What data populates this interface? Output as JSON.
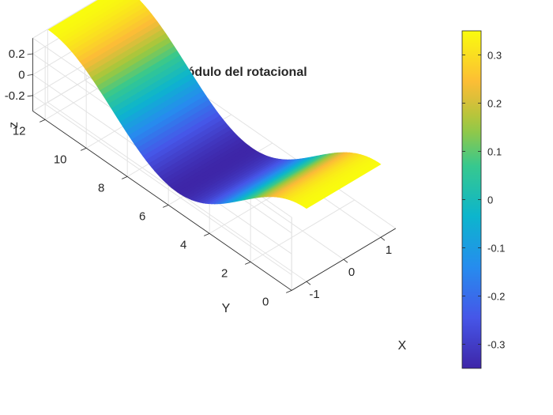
{
  "chart_data": {
    "type": "surface",
    "title": "Módulo del rotacional",
    "xlabel": "X",
    "ylabel": "Y",
    "zlabel": "z",
    "xlim": [
      -1.4,
      1.4
    ],
    "ylim": [
      0,
      12.6
    ],
    "zlim": [
      -0.35,
      0.35
    ],
    "x_ticks": [
      -1,
      0,
      1
    ],
    "x_tick_labels": [
      "-1",
      "0",
      "1"
    ],
    "y_ticks": [
      0,
      2,
      4,
      6,
      8,
      10,
      12
    ],
    "y_tick_labels": [
      "0",
      "2",
      "4",
      "6",
      "8",
      "10",
      "12"
    ],
    "z_ticks": [
      -0.2,
      0,
      0.2
    ],
    "z_tick_labels": [
      "-0.2",
      "0",
      "0.2"
    ],
    "surface": {
      "x_range": [
        -1,
        1
      ],
      "y_range": [
        0,
        12.57
      ],
      "function": "z = 0.35 * cos(y / 2)"
    },
    "colormap": "parula",
    "colorbar": {
      "range": [
        -0.35,
        0.35
      ],
      "ticks": [
        0.3,
        0.2,
        0.1,
        0,
        -0.1,
        -0.2,
        -0.3
      ],
      "tick_labels": [
        "0.3",
        "0.2",
        "0.1",
        "0",
        "-0.1",
        "-0.2",
        "-0.3"
      ]
    },
    "grid": true
  }
}
